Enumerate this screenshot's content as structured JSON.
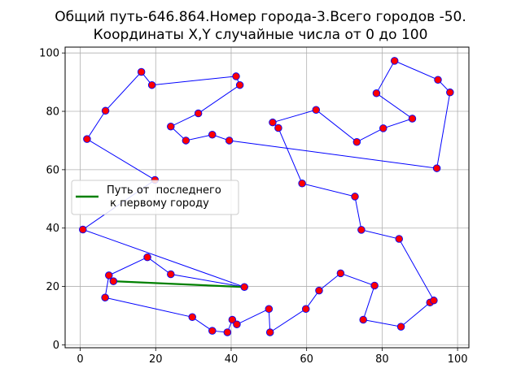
{
  "chart_data": {
    "type": "scatter",
    "title_line1": "Общий путь-646.864.Номер города-3.Всего городов -50.",
    "title_line2": "Координаты X,Y случайные числа от 0 до 100",
    "xlabel": "",
    "ylabel": "",
    "xlim": [
      -4,
      103
    ],
    "ylim": [
      -1,
      102
    ],
    "xticks": [
      0,
      20,
      40,
      60,
      80,
      100
    ],
    "yticks": [
      0,
      20,
      40,
      60,
      80,
      100
    ],
    "grid": true,
    "legend": {
      "placement": "center-left",
      "entries": [
        {
          "label": "Путь от  последнего\n к первому городу",
          "color": "#008000"
        }
      ]
    },
    "colors": {
      "path": "#0000ff",
      "closing_path": "#008000",
      "point_fill": "#ff0000",
      "point_edge": "#0000ff",
      "grid": "#b0b0b0"
    },
    "route": [
      [
        43.5,
        19.8
      ],
      [
        24.0,
        24.2
      ],
      [
        17.8,
        30.0
      ],
      [
        7.6,
        23.8
      ],
      [
        6.6,
        16.2
      ],
      [
        29.7,
        9.5
      ],
      [
        35.0,
        4.8
      ],
      [
        39.0,
        4.3
      ],
      [
        40.3,
        8.6
      ],
      [
        41.5,
        7.0
      ],
      [
        50.0,
        12.3
      ],
      [
        50.3,
        4.3
      ],
      [
        59.8,
        12.3
      ],
      [
        63.3,
        18.6
      ],
      [
        69.0,
        24.5
      ],
      [
        78.0,
        20.3
      ],
      [
        75.0,
        8.6
      ],
      [
        85.0,
        6.2
      ],
      [
        92.7,
        14.5
      ],
      [
        93.7,
        15.2
      ],
      [
        84.5,
        36.3
      ],
      [
        74.5,
        39.4
      ],
      [
        72.8,
        50.8
      ],
      [
        58.8,
        55.3
      ],
      [
        52.5,
        74.3
      ],
      [
        51.0,
        76.2
      ],
      [
        62.5,
        80.5
      ],
      [
        73.3,
        69.5
      ],
      [
        80.3,
        74.2
      ],
      [
        88.0,
        77.5
      ],
      [
        78.5,
        86.2
      ],
      [
        83.3,
        97.3
      ],
      [
        94.8,
        90.8
      ],
      [
        98.0,
        86.5
      ],
      [
        94.5,
        60.5
      ],
      [
        39.5,
        70.0
      ],
      [
        35.0,
        72.0
      ],
      [
        28.0,
        70.0
      ],
      [
        24.0,
        74.8
      ],
      [
        31.3,
        79.3
      ],
      [
        42.3,
        89.0
      ],
      [
        41.3,
        92.0
      ],
      [
        19.0,
        89.0
      ],
      [
        16.2,
        93.5
      ],
      [
        6.7,
        80.2
      ],
      [
        1.8,
        70.5
      ],
      [
        19.8,
        56.5
      ],
      [
        0.7,
        39.5
      ],
      [
        43.5,
        19.8
      ]
    ],
    "closing_segment": [
      [
        8.8,
        21.8
      ],
      [
        43.5,
        19.8
      ]
    ],
    "extra_points": [
      [
        8.8,
        21.8
      ]
    ]
  }
}
